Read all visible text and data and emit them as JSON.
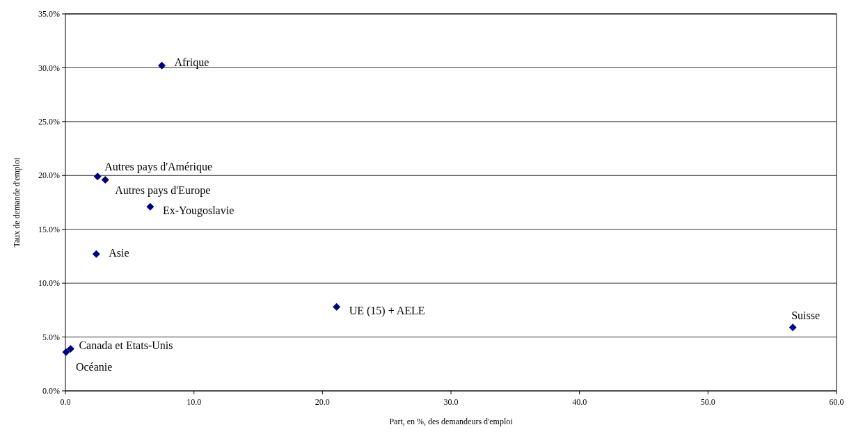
{
  "chart_data": {
    "type": "scatter",
    "xlabel": "Part, en %, des demandeurs d'emploi",
    "ylabel": "Taux de demande d'emploi",
    "x": [
      7.5,
      2.5,
      3.1,
      6.6,
      2.4,
      21.1,
      56.6,
      0.4,
      0.05
    ],
    "values": [
      30.2,
      19.9,
      19.6,
      17.1,
      12.7,
      7.8,
      5.9,
      3.9,
      3.6
    ],
    "color": "#000080",
    "marker": "diamond",
    "grid": "y",
    "xlim": [
      0,
      60
    ],
    "xticks": [
      {
        "value": 0,
        "label": "0.0"
      },
      {
        "value": 10,
        "label": "10.0"
      },
      {
        "value": 20,
        "label": "20.0"
      },
      {
        "value": 30,
        "label": "30.0"
      },
      {
        "value": 40,
        "label": "40.0"
      },
      {
        "value": 50,
        "label": "50.0"
      },
      {
        "value": 60,
        "label": "60.0"
      }
    ],
    "ylim": [
      0,
      35
    ],
    "yticks": [
      {
        "value": 0,
        "label": "0.0%"
      },
      {
        "value": 5,
        "label": "5.0%"
      },
      {
        "value": 10,
        "label": "10.0%"
      },
      {
        "value": 15,
        "label": "15.0%"
      },
      {
        "value": 20,
        "label": "20.0%"
      },
      {
        "value": 25,
        "label": "25.0%"
      },
      {
        "value": 30,
        "label": "30.0%"
      },
      {
        "value": 35,
        "label": "35.0%"
      }
    ],
    "annotations": [
      {
        "text": "Afrique",
        "x": 7.5,
        "y": 30.2
      },
      {
        "text": "Autres pays d'Amérique",
        "x": 2.5,
        "y": 19.9
      },
      {
        "text": "Autres pays d'Europe",
        "x": 3.1,
        "y": 19.6
      },
      {
        "text": "Ex-Yougoslavie",
        "x": 6.6,
        "y": 17.1
      },
      {
        "text": "Asie",
        "x": 2.4,
        "y": 12.7
      },
      {
        "text": "UE (15) + AELE",
        "x": 21.1,
        "y": 7.8
      },
      {
        "text": "Suisse",
        "x": 56.6,
        "y": 5.9
      },
      {
        "text": "Canada et Etats-Unis",
        "x": 0.4,
        "y": 3.9
      },
      {
        "text": "Océanie",
        "x": 0.05,
        "y": 3.6
      }
    ]
  }
}
